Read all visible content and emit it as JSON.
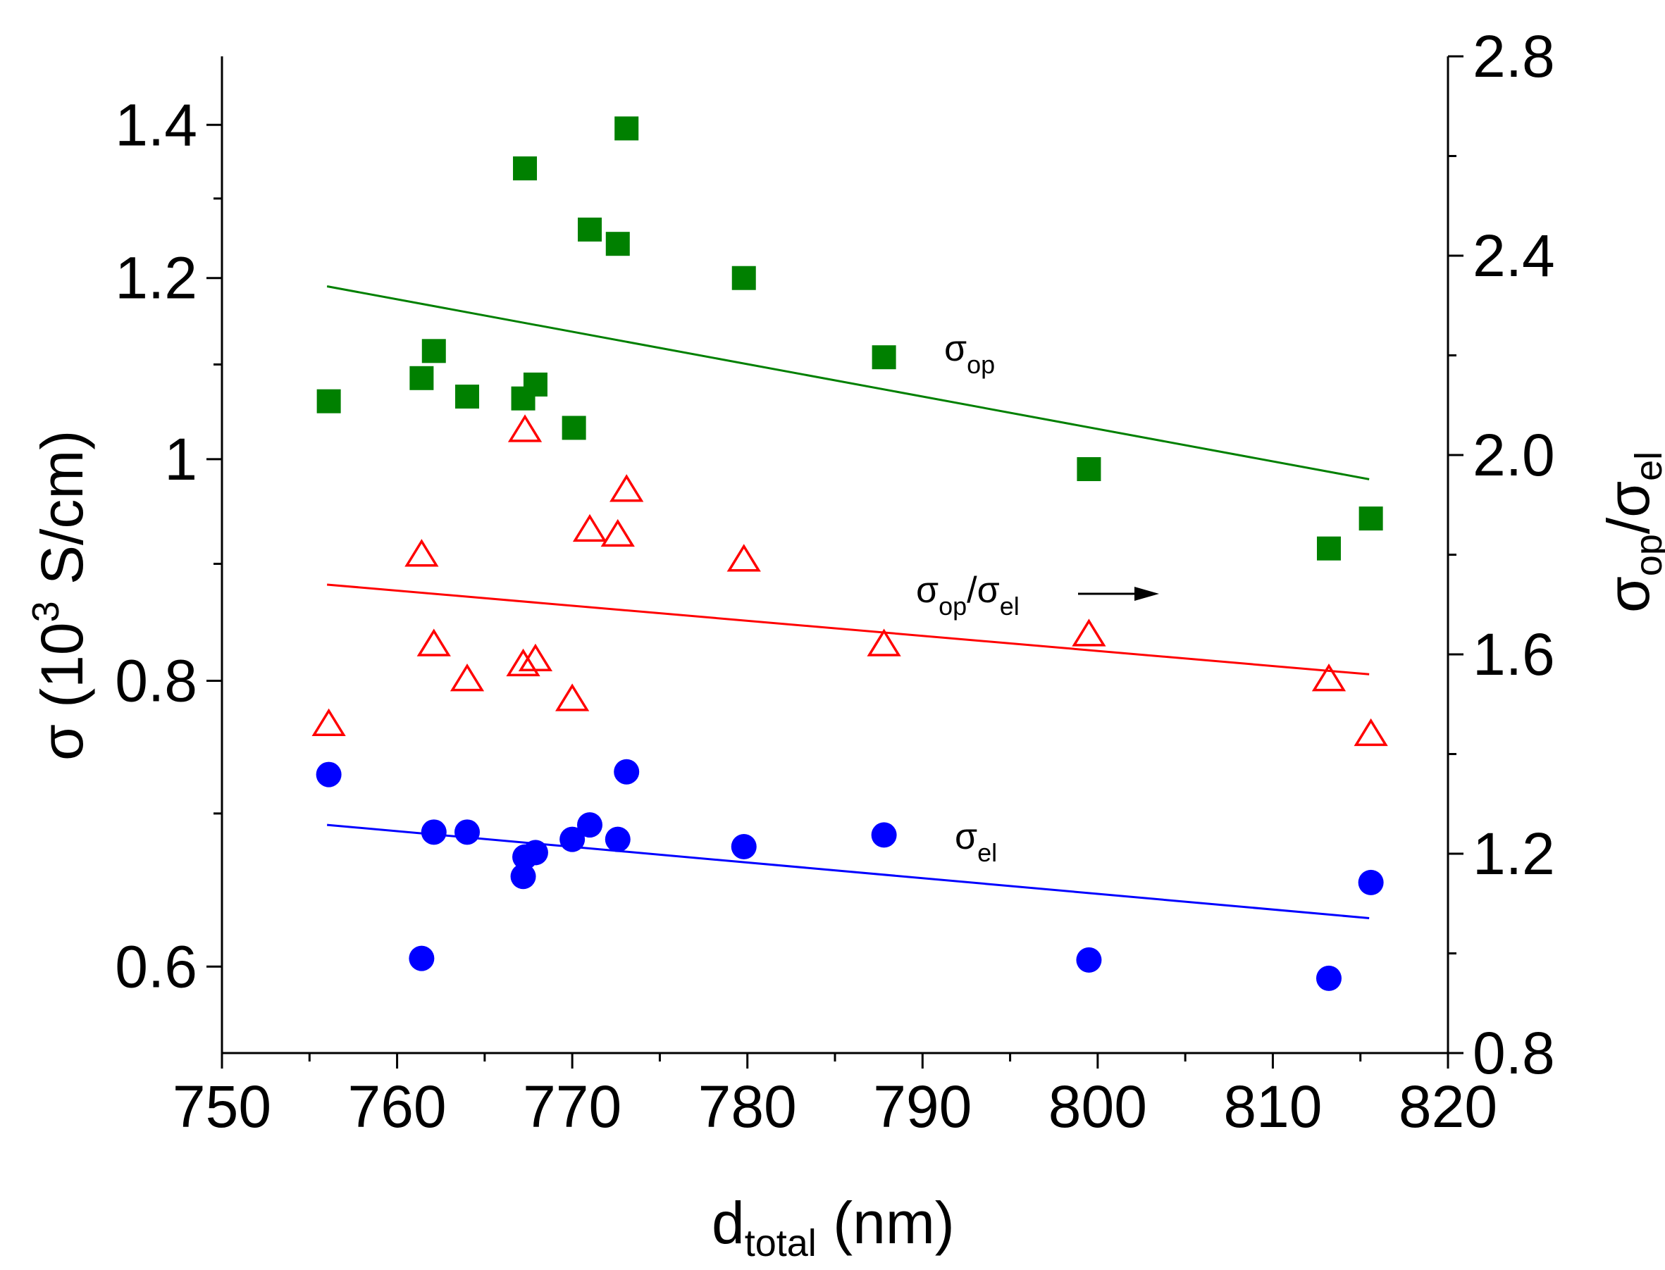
{
  "chart_data": {
    "type": "scatter",
    "title": "",
    "x": {
      "label_base": "d",
      "label_sub": "total",
      "label_rest": " (nm)",
      "range": [
        750,
        820
      ],
      "major_ticks": [
        750,
        760,
        770,
        780,
        790,
        800,
        810,
        820
      ],
      "minor_step": 5
    },
    "y_left": {
      "label_sym": "σ (10",
      "label_sup": "3",
      "label_rest": " S/cm)",
      "scale": "log",
      "range": [
        0.55,
        1.5
      ],
      "tick_values": [
        0.6,
        0.8,
        1.0,
        1.2,
        1.4
      ],
      "tick_labels": [
        "0.6",
        "0.8",
        "1",
        "1.2",
        "1.4"
      ],
      "minor_ticks": [
        0.7,
        0.9,
        1.1,
        1.3
      ]
    },
    "y_right": {
      "label": "σop/σel",
      "label_parts": [
        "σ",
        "op",
        "/σ",
        "el"
      ],
      "scale": "linear",
      "range": [
        0.8,
        2.8
      ],
      "tick_values": [
        0.8,
        1.2,
        1.6,
        2.0,
        2.4,
        2.8
      ],
      "tick_labels": [
        "0.8",
        "1.2",
        "1.6",
        "2.0",
        "2.4",
        "2.8"
      ],
      "minor_step": 0.2
    },
    "series": [
      {
        "name": "σop",
        "axis": "left",
        "marker": "square",
        "color": "#008000",
        "x": [
          756.1,
          761.4,
          762.1,
          764.0,
          767.2,
          767.9,
          770.1,
          771.0,
          772.6,
          773.1,
          767.3,
          779.8,
          787.8,
          799.5,
          813.2,
          815.6
        ],
        "y": [
          1.06,
          1.085,
          1.115,
          1.065,
          1.063,
          1.078,
          1.032,
          1.26,
          1.242,
          1.395,
          1.34,
          1.2,
          1.108,
          0.99,
          0.914,
          0.942
        ],
        "fit": {
          "x": [
            756,
            815.5
          ],
          "y": [
            1.19,
            0.98
          ]
        }
      },
      {
        "name": "σop/σel",
        "axis": "right",
        "marker": "open-triangle",
        "color": "#ff0000",
        "x": [
          756.1,
          761.4,
          762.1,
          764.0,
          767.2,
          767.3,
          767.9,
          770.0,
          771.0,
          772.6,
          773.1,
          779.8,
          787.8,
          799.5,
          813.2,
          815.6
        ],
        "y": [
          1.46,
          1.8,
          1.62,
          1.55,
          1.58,
          2.05,
          1.59,
          1.51,
          1.85,
          1.84,
          1.93,
          1.79,
          1.62,
          1.64,
          1.55,
          1.44
        ],
        "fit": {
          "x": [
            756,
            815.5
          ],
          "y": [
            1.74,
            1.56
          ]
        }
      },
      {
        "name": "σel",
        "axis": "left",
        "marker": "circle",
        "color": "#0000ff",
        "x": [
          756.1,
          761.4,
          762.1,
          764.0,
          767.2,
          767.3,
          767.9,
          770.0,
          771.0,
          772.6,
          773.1,
          779.8,
          787.8,
          799.5,
          813.2,
          815.6
        ],
        "y": [
          0.728,
          0.605,
          0.687,
          0.687,
          0.657,
          0.67,
          0.673,
          0.682,
          0.692,
          0.682,
          0.73,
          0.677,
          0.685,
          0.604,
          0.593,
          0.653
        ],
        "fit": {
          "x": [
            756,
            815.5
          ],
          "y": [
            0.692,
            0.63
          ]
        }
      }
    ],
    "annotations": [
      {
        "base": "σ",
        "sub": "op",
        "near": "green fit line"
      },
      {
        "base": "σ",
        "sub": "op",
        "mid": "/σ",
        "sub2": "el",
        "arrow": "right",
        "near": "red fit line"
      },
      {
        "base": "σ",
        "sub": "el",
        "near": "blue fit line"
      }
    ],
    "grid": false,
    "legend": "none"
  }
}
